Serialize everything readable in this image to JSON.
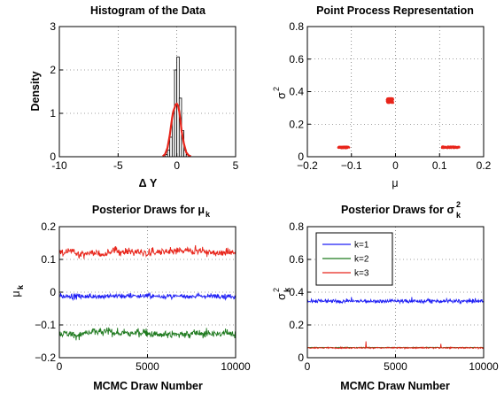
{
  "chart_data": [
    {
      "id": "hist",
      "type": "bar",
      "title": "Histogram of the Data",
      "xlabel": "Δ  Y",
      "ylabel": "Density",
      "xlim": [
        -10,
        5
      ],
      "ylim": [
        0,
        3
      ],
      "xticks": [
        "-10",
        "-5",
        "0",
        "5"
      ],
      "yticks": [
        "0",
        "1",
        "2",
        "3"
      ],
      "grid": true,
      "bars": {
        "x": [
          -0.9,
          -0.7,
          -0.5,
          -0.3,
          -0.1,
          0.1,
          0.3,
          0.5,
          0.7,
          0.9
        ],
        "values": [
          0.05,
          0.15,
          0.45,
          1.0,
          2.0,
          2.3,
          1.35,
          0.6,
          0.15,
          0.05
        ],
        "color": "#000000"
      },
      "series": [
        {
          "style": "line",
          "color": "#e8251b",
          "x": [
            -1.2,
            -1.0,
            -0.8,
            -0.6,
            -0.4,
            -0.3,
            -0.2,
            -0.1,
            0.0,
            0.1,
            0.2,
            0.3,
            0.4,
            0.6,
            0.8,
            1.0,
            1.2
          ],
          "values": [
            0.01,
            0.06,
            0.2,
            0.5,
            0.9,
            1.05,
            1.12,
            1.2,
            1.22,
            1.18,
            1.05,
            0.85,
            0.6,
            0.3,
            0.1,
            0.03,
            0.01
          ]
        }
      ]
    },
    {
      "id": "pp",
      "type": "scatter",
      "title": "Point Process Representation",
      "xlabel": "μ",
      "ylabel": "σ",
      "ylabel_sup": "2",
      "xlim": [
        -0.2,
        0.2
      ],
      "ylim": [
        0,
        0.8
      ],
      "xticks": [
        "−0.2",
        "−0.1",
        "0",
        "0.1",
        "0.2"
      ],
      "yticks": [
        "0",
        "0.2",
        "0.4",
        "0.6",
        "0.8"
      ],
      "grid": true,
      "color": "#e8251b",
      "clusters": [
        {
          "mu_range": [
            -0.13,
            -0.105
          ],
          "sigma2_range": [
            0.052,
            0.062
          ]
        },
        {
          "mu_range": [
            -0.02,
            -0.005
          ],
          "sigma2_range": [
            0.33,
            0.36
          ]
        },
        {
          "mu_range": [
            0.105,
            0.145
          ],
          "sigma2_range": [
            0.053,
            0.063
          ]
        }
      ]
    },
    {
      "id": "mu",
      "type": "line",
      "title": "Posterior Draws for μ",
      "title_sub": "k",
      "xlabel": "MCMC Draw Number",
      "ylabel": "μ",
      "ylabel_sub": "k",
      "xlim": [
        0,
        10000
      ],
      "ylim": [
        -0.2,
        0.2
      ],
      "xticks": [
        "0",
        "5000",
        "10000"
      ],
      "yticks": [
        "−0.2",
        "−0.1",
        "0",
        "0.1",
        "0.2"
      ],
      "grid": true,
      "series": [
        {
          "color": "#e8251b",
          "mean": 0.12,
          "noise": 0.006,
          "drift": 0.004
        },
        {
          "color": "#1d1df5",
          "mean": -0.012,
          "noise": 0.004,
          "drift": 0.001
        },
        {
          "color": "#1f7a1f",
          "mean": -0.125,
          "noise": 0.006,
          "drift": 0.004
        }
      ]
    },
    {
      "id": "sig",
      "type": "line",
      "title": "Posterior Draws for σ",
      "title_sup": "2",
      "title_sub": "k",
      "xlabel": "MCMC Draw Number",
      "ylabel": "σ",
      "ylabel_sup": "2",
      "ylabel_sub": "k",
      "xlim": [
        0,
        10000
      ],
      "ylim": [
        0,
        0.8
      ],
      "xticks": [
        "0",
        "5000",
        "10000"
      ],
      "yticks": [
        "0",
        "0.2",
        "0.4",
        "0.6",
        "0.8"
      ],
      "grid": true,
      "legend": {
        "placement": "top-left",
        "entries": [
          "k=1",
          "k=2",
          "k=3"
        ],
        "colors": [
          "#1d1df5",
          "#1f7a1f",
          "#e8251b"
        ]
      },
      "series": [
        {
          "color": "#1d1df5",
          "mean": 0.345,
          "noise": 0.006,
          "spikes": [
            0.37,
            0.37,
            0.36
          ]
        },
        {
          "color": "#1f7a1f",
          "mean": 0.062,
          "noise": 0.001,
          "spikes": []
        },
        {
          "color": "#e8251b",
          "mean": 0.06,
          "noise": 0.002,
          "spikes": [
            0.1,
            0.085
          ]
        }
      ]
    }
  ]
}
